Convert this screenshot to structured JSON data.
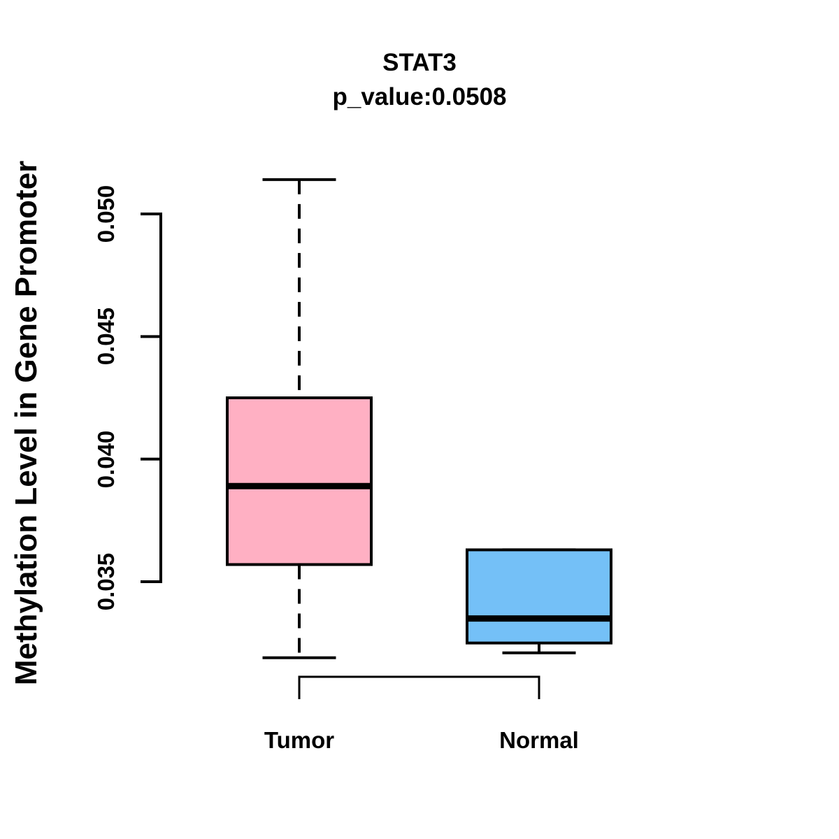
{
  "chart_data": {
    "type": "boxplot",
    "title": "STAT3",
    "subtitle": "p_value:0.0508",
    "ylabel": "Methylation Level in Gene Promoter",
    "xlabel": "",
    "categories": [
      "Tumor",
      "Normal"
    ],
    "ylim": [
      0.035,
      0.05
    ],
    "y_ticks": [
      0.035,
      0.04,
      0.045,
      0.05
    ],
    "y_tick_labels": [
      "0.035",
      "0.040",
      "0.045",
      "0.050"
    ],
    "grid": false,
    "legend": "none",
    "axis_color": "#000000",
    "series": [
      {
        "name": "Tumor",
        "color": "#FFB0C3",
        "whisker_low": 0.0319,
        "q1": 0.0357,
        "median": 0.0389,
        "q3": 0.0425,
        "whisker_high": 0.0514
      },
      {
        "name": "Normal",
        "color": "#74C0F7",
        "whisker_low": 0.0321,
        "q1": 0.0325,
        "median": 0.0335,
        "q3": 0.0363,
        "whisker_high": 0.0363
      }
    ],
    "annotations": {
      "comparison_bracket": {
        "from": "Tumor",
        "to": "Normal"
      }
    }
  }
}
